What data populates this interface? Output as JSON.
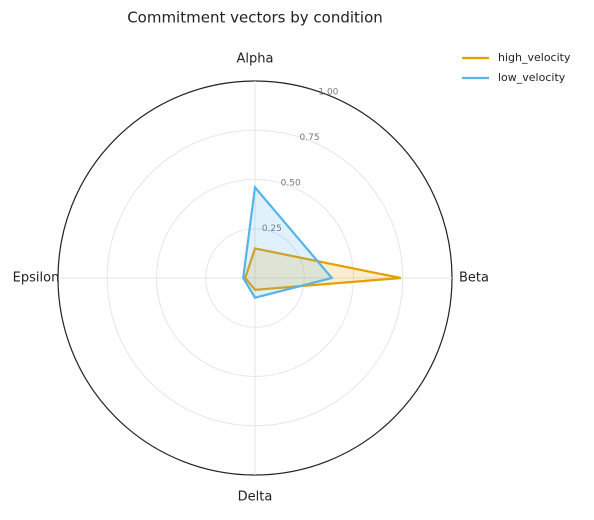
{
  "chart_data": {
    "type": "radar",
    "title": "Commitment vectors by condition",
    "categories": [
      "Alpha",
      "Beta",
      "Delta",
      "Epsilon"
    ],
    "series": [
      {
        "name": "high_velocity",
        "color": "#E69F00",
        "values": [
          0.15,
          0.74,
          0.06,
          0.05
        ]
      },
      {
        "name": "low_velocity",
        "color": "#56B4E9",
        "values": [
          0.46,
          0.39,
          0.1,
          0.06
        ]
      }
    ],
    "ylim": [
      0,
      1
    ],
    "yticks": [
      {
        "value": 0.25,
        "label": "0.25"
      },
      {
        "value": 0.5,
        "label": "0.50"
      },
      {
        "value": 0.75,
        "label": "0.75"
      },
      {
        "value": 1.0,
        "label": "1.00"
      }
    ],
    "grid": true,
    "legend": "upper-right"
  }
}
